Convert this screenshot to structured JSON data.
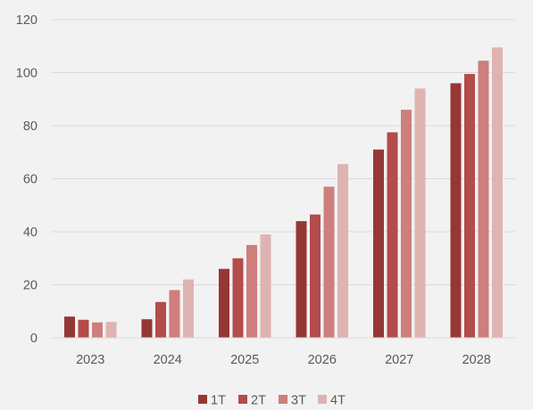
{
  "chart_data": {
    "type": "bar",
    "categories": [
      "2023",
      "2024",
      "2025",
      "2026",
      "2027",
      "2028"
    ],
    "series": [
      {
        "name": "1T",
        "color": "#953735",
        "values": [
          8,
          7,
          26,
          44,
          71,
          96
        ]
      },
      {
        "name": "2T",
        "color": "#b34c4a",
        "values": [
          6.8,
          13.5,
          30,
          46.5,
          77.5,
          99.5
        ]
      },
      {
        "name": "3T",
        "color": "#cd7e7d",
        "values": [
          5.8,
          18,
          35,
          57,
          86,
          104.5
        ]
      },
      {
        "name": "4T",
        "color": "#dfb3b2",
        "values": [
          6,
          22,
          39,
          65.5,
          94,
          109.5
        ]
      }
    ],
    "ylim": [
      0,
      120
    ],
    "yticks": [
      0,
      20,
      40,
      60,
      80,
      100,
      120
    ],
    "grid": true,
    "legend_position": "bottom",
    "title": "",
    "xlabel": "",
    "ylabel": ""
  }
}
